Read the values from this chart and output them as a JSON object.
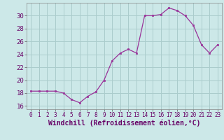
{
  "x": [
    0,
    1,
    2,
    3,
    4,
    5,
    6,
    7,
    8,
    9,
    10,
    11,
    12,
    13,
    14,
    15,
    16,
    17,
    18,
    19,
    20,
    21,
    22,
    23
  ],
  "y": [
    18.3,
    18.3,
    18.3,
    18.3,
    18.0,
    17.0,
    16.5,
    17.5,
    18.2,
    20.0,
    23.0,
    24.2,
    24.8,
    24.2,
    30.0,
    30.0,
    30.2,
    31.2,
    30.8,
    30.0,
    28.5,
    25.5,
    24.2,
    25.5
  ],
  "line_color": "#993399",
  "marker": "s",
  "marker_size": 2,
  "background_color": "#cce8e8",
  "grid_color": "#aacccc",
  "xlabel": "Windchill (Refroidissement éolien,°C)",
  "xlabel_fontsize": 7,
  "xlim": [
    -0.5,
    23.5
  ],
  "ylim": [
    15.5,
    32
  ],
  "yticks": [
    16,
    18,
    20,
    22,
    24,
    26,
    28,
    30
  ],
  "xticks": [
    0,
    1,
    2,
    3,
    4,
    5,
    6,
    7,
    8,
    9,
    10,
    11,
    12,
    13,
    14,
    15,
    16,
    17,
    18,
    19,
    20,
    21,
    22,
    23
  ],
  "tick_fontsize": 6.5
}
